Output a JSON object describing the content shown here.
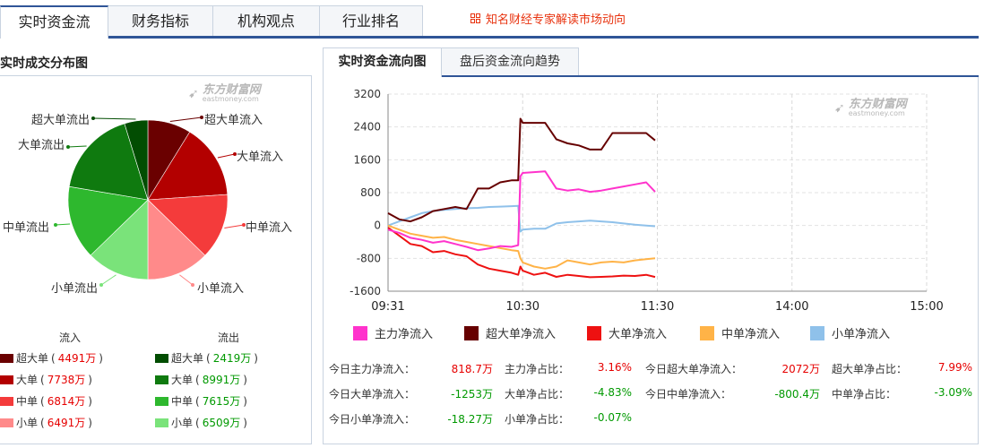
{
  "top_tabs": [
    "实时资金流",
    "财务指标",
    "机构观点",
    "行业排名"
  ],
  "promo_text": "知名财经专家解读市场动向",
  "left": {
    "title": "实时成交分布图",
    "logo_cn": "东方财富网",
    "logo_en": "eastmoney.com",
    "legend_in_title": "流入",
    "legend_out_title": "流出",
    "inflow": [
      {
        "name": "超大单",
        "value": "4491万",
        "color": "#6a0000"
      },
      {
        "name": "大单",
        "value": "7738万",
        "color": "#b30000"
      },
      {
        "name": "中单",
        "value": "6814万",
        "color": "#f43b3b"
      },
      {
        "name": "小单",
        "value": "6491万",
        "color": "#ff8a8a"
      }
    ],
    "outflow": [
      {
        "name": "超大单",
        "value": "2419万",
        "color": "#024d02"
      },
      {
        "name": "大单",
        "value": "8991万",
        "color": "#0f7a0f"
      },
      {
        "name": "中单",
        "value": "7615万",
        "color": "#2eb82e"
      },
      {
        "name": "小单",
        "value": "6509万",
        "color": "#7ae37a"
      }
    ],
    "pie_labels": {
      "super_in": "超大单流入",
      "big_in": "大单流入",
      "mid_in": "中单流入",
      "small_in": "小单流入",
      "super_out": "超大单流出",
      "big_out": "大单流出",
      "mid_out": "中单流出",
      "small_out": "小单流出"
    }
  },
  "right": {
    "tabs": [
      "实时资金流向图",
      "盘后资金流向趋势"
    ],
    "logo_cn": "东方财富网",
    "logo_en": "eastmoney.com",
    "series_legend": [
      {
        "name": "主力净流入",
        "color": "#ff33cc"
      },
      {
        "name": "超大单净流入",
        "color": "#660000"
      },
      {
        "name": "大单净流入",
        "color": "#ee1111"
      },
      {
        "name": "中单净流入",
        "color": "#ffb347"
      },
      {
        "name": "小单净流入",
        "color": "#8fc1ea"
      }
    ],
    "stats": [
      {
        "label": "今日主力净流入：",
        "value": "818.7万",
        "cls": "red"
      },
      {
        "label": "主力净占比：",
        "value": "3.16%",
        "cls": "red"
      },
      {
        "label": "今日超大单净流入：",
        "value": "2072万",
        "cls": "red"
      },
      {
        "label": "超大单净占比：",
        "value": "7.99%",
        "cls": "red"
      },
      {
        "label": "今日大单净流入：",
        "value": "-1253万",
        "cls": "green"
      },
      {
        "label": "大单净占比：",
        "value": "-4.83%",
        "cls": "green"
      },
      {
        "label": "今日中单净流入：",
        "value": "-800.4万",
        "cls": "green"
      },
      {
        "label": "中单净占比：",
        "value": "-3.09%",
        "cls": "green"
      },
      {
        "label": "今日小单净流入：",
        "value": "-18.27万",
        "cls": "green"
      },
      {
        "label": "小单净占比：",
        "value": "-0.07%",
        "cls": "green"
      }
    ]
  },
  "chart_data": [
    {
      "type": "pie",
      "title": "实时成交分布图",
      "categories": [
        "超大单流入",
        "大单流入",
        "中单流入",
        "小单流入",
        "小单流出",
        "中单流出",
        "大单流出",
        "超大单流出"
      ],
      "values": [
        4491,
        7738,
        6814,
        6491,
        6509,
        7615,
        8991,
        2419
      ],
      "colors": [
        "#6a0000",
        "#b30000",
        "#f43b3b",
        "#ff8a8a",
        "#7ae37a",
        "#2eb82e",
        "#0f7a0f",
        "#024d02"
      ]
    },
    {
      "type": "line",
      "title": "实时资金流向图",
      "x_ticks": [
        "09:31",
        "10:30",
        "11:30",
        "14:00",
        "15:00"
      ],
      "y_ticks": [
        3200,
        2400,
        1600,
        800,
        0,
        -800,
        -1600
      ],
      "ylim": [
        -1600,
        3200
      ],
      "grid": true,
      "x_total_minutes": 240,
      "x_minutes": [
        0,
        5,
        10,
        15,
        20,
        25,
        30,
        35,
        40,
        45,
        50,
        55,
        58,
        59,
        60,
        65,
        70,
        75,
        80,
        85,
        90,
        95,
        100,
        105,
        110,
        115,
        119
      ],
      "series": [
        {
          "name": "主力净流入",
          "color": "#ff33cc",
          "values": [
            -100,
            -180,
            -300,
            -350,
            -420,
            -380,
            -450,
            -520,
            -600,
            -560,
            -500,
            -520,
            -480,
            1200,
            1280,
            1300,
            1320,
            900,
            850,
            880,
            820,
            850,
            900,
            950,
            1000,
            1050,
            820
          ]
        },
        {
          "name": "超大单净流入",
          "color": "#660000",
          "values": [
            300,
            150,
            100,
            200,
            350,
            400,
            450,
            400,
            900,
            900,
            1050,
            1100,
            1100,
            2600,
            2500,
            2500,
            2500,
            2100,
            2000,
            1950,
            1850,
            1850,
            2250,
            2250,
            2250,
            2250,
            2072
          ]
        },
        {
          "name": "大单净流入",
          "color": "#ee1111",
          "values": [
            -50,
            -250,
            -450,
            -500,
            -650,
            -620,
            -700,
            -750,
            -950,
            -1050,
            -1100,
            -1150,
            -1200,
            -1000,
            -1100,
            -1200,
            -1150,
            -1250,
            -1200,
            -1230,
            -1260,
            -1250,
            -1240,
            -1220,
            -1230,
            -1200,
            -1253
          ]
        },
        {
          "name": "中单净流入",
          "color": "#ffb347",
          "values": [
            0,
            -100,
            -200,
            -250,
            -300,
            -280,
            -350,
            -400,
            -450,
            -500,
            -550,
            -600,
            -620,
            -800,
            -900,
            -1000,
            -1050,
            -1000,
            -850,
            -900,
            -950,
            -900,
            -880,
            -900,
            -850,
            -820,
            -800
          ]
        },
        {
          "name": "小单净流入",
          "color": "#8fc1ea",
          "values": [
            0,
            100,
            200,
            300,
            350,
            380,
            400,
            420,
            430,
            450,
            460,
            470,
            480,
            -150,
            -100,
            -80,
            -80,
            50,
            80,
            100,
            120,
            100,
            80,
            50,
            20,
            0,
            -18
          ]
        }
      ]
    }
  ]
}
